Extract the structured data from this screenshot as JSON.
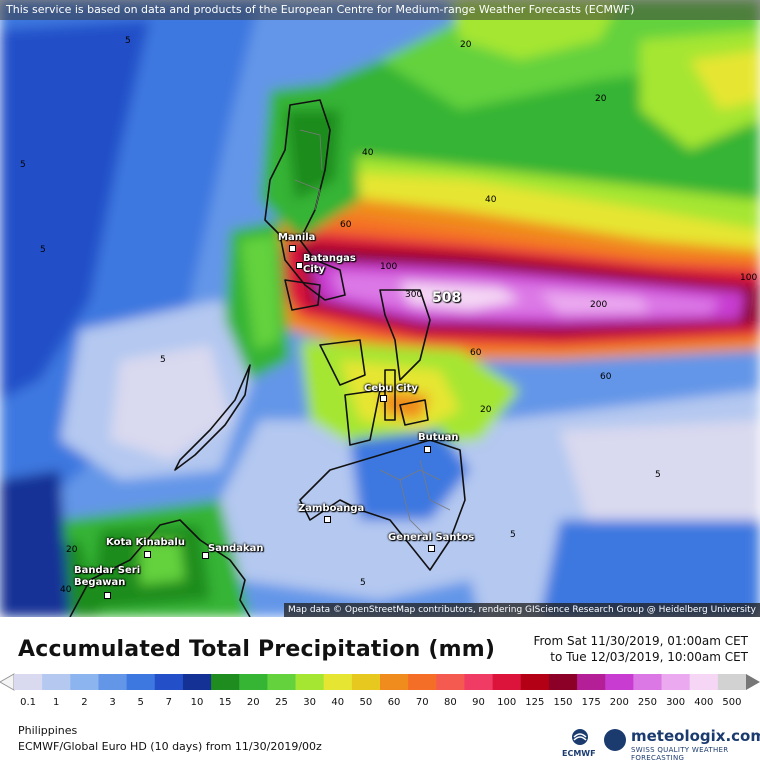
{
  "notice": "This service is based on data and products of the European Centre for Medium-range Weather Forecasts (ECMWF)",
  "attribution": "Map data © OpenStreetMap contributors, rendering GIScience Research Group @ Heidelberg University",
  "cities": {
    "manila": "Manila",
    "batangas": "Batangas City",
    "cebu": "Cebu City",
    "butuan": "Butuan",
    "zamboanga": "Zamboanga",
    "general_santos": "General Santos",
    "kota_kinabalu": "Kota Kinabalu",
    "sandakan": "Sandakan",
    "bandar": "Bandar Seri Begawan"
  },
  "max_value": "508",
  "legend": {
    "title": "Accumulated Total Precipitation (mm)",
    "from": "From Sat 11/30/2019, 01:00am CET",
    "to": "to Tue 12/03/2019, 10:00am CET",
    "ticks": [
      "0.1",
      "1",
      "2",
      "3",
      "5",
      "7",
      "10",
      "15",
      "20",
      "25",
      "30",
      "40",
      "50",
      "60",
      "70",
      "80",
      "90",
      "100",
      "125",
      "150",
      "175",
      "200",
      "250",
      "300",
      "400",
      "500"
    ],
    "colors": [
      "#d9d9ef",
      "#b4c8f0",
      "#8cb4ee",
      "#6496e8",
      "#3c78e0",
      "#2350c8",
      "#143296",
      "#1e8c1e",
      "#36b434",
      "#64d23c",
      "#a5e632",
      "#e6e632",
      "#e6c81e",
      "#f08c1e",
      "#f56e28",
      "#f55a50",
      "#f03c64",
      "#dc143c",
      "#b40014",
      "#8c0028",
      "#b41e96",
      "#c83cd2",
      "#dc78e6",
      "#ebaaf0",
      "#f5d7f5",
      "#d2d2d2"
    ],
    "region": "Philippines",
    "model_line": "ECMWF/Global Euro HD (10 days) from 11/30/2019/00z",
    "ecmwf_logo_text": "ECMWF",
    "brand": "meteologix.com",
    "brand_sub": "SWISS QUALITY WEATHER FORECASTING"
  }
}
